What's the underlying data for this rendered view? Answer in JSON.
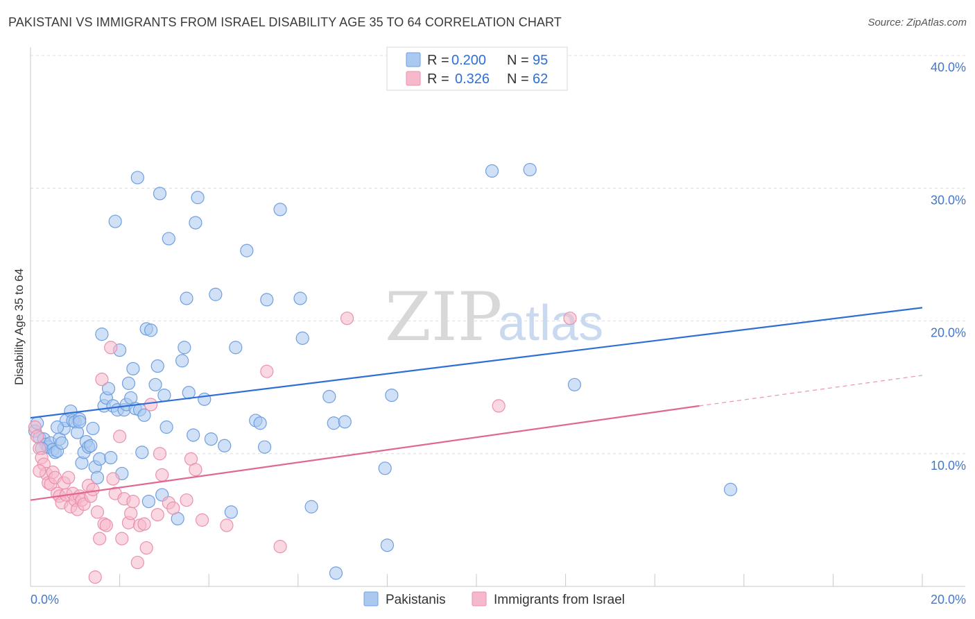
{
  "header": {
    "title": "PAKISTANI VS IMMIGRANTS FROM ISRAEL DISABILITY AGE 35 TO 64 CORRELATION CHART",
    "source": "Source: ZipAtlas.com"
  },
  "watermark": {
    "zip": "ZIP",
    "atlas": "atlas"
  },
  "legend": {
    "rows": [
      {
        "r_label": "R =",
        "r_value": "0.200",
        "n_label": "N =",
        "n_value": "95",
        "color": "#aac8f0"
      },
      {
        "r_label": "R =",
        "r_value": "0.326",
        "n_label": "N =",
        "n_value": "62",
        "color": "#f6b8cb"
      }
    ]
  },
  "chart_data": {
    "type": "scatter",
    "title": "PAKISTANI VS IMMIGRANTS FROM ISRAEL DISABILITY AGE 35 TO 64 CORRELATION CHART",
    "ylabel": "Disability Age 35 to 64",
    "xlabel": "",
    "xlim": [
      0,
      20
    ],
    "ylim": [
      0,
      40
    ],
    "x_ticks": [
      "0.0%",
      "20.0%"
    ],
    "y_ticks": [
      {
        "value": 10,
        "label": "10.0%"
      },
      {
        "value": 20,
        "label": "20.0%"
      },
      {
        "value": 30,
        "label": "30.0%"
      },
      {
        "value": 40,
        "label": "40.0%"
      }
    ],
    "grid": true,
    "legend_position": "top-center",
    "series": [
      {
        "name": "Pakistanis",
        "color": "#6f9fe0",
        "fill": "#aac8f0",
        "trend": {
          "x": [
            0,
            20
          ],
          "y": [
            12.7,
            21.0
          ],
          "color": "#2e6fd6"
        },
        "points": [
          [
            0.1,
            11.7
          ],
          [
            0.2,
            11.2
          ],
          [
            0.3,
            11.1
          ],
          [
            0.35,
            10.7
          ],
          [
            0.4,
            10.5
          ],
          [
            0.45,
            10.8
          ],
          [
            0.5,
            10.3
          ],
          [
            0.55,
            10.1
          ],
          [
            0.6,
            10.2
          ],
          [
            0.65,
            11.1
          ],
          [
            0.7,
            10.8
          ],
          [
            0.75,
            11.9
          ],
          [
            0.8,
            12.5
          ],
          [
            0.9,
            13.2
          ],
          [
            0.95,
            12.5
          ],
          [
            1.0,
            12.4
          ],
          [
            1.05,
            11.6
          ],
          [
            1.1,
            12.6
          ],
          [
            1.15,
            9.3
          ],
          [
            1.2,
            10.1
          ],
          [
            1.25,
            10.9
          ],
          [
            1.3,
            10.5
          ],
          [
            1.35,
            10.6
          ],
          [
            1.4,
            11.9
          ],
          [
            1.45,
            9.0
          ],
          [
            1.5,
            8.2
          ],
          [
            1.55,
            9.6
          ],
          [
            1.6,
            19.0
          ],
          [
            1.65,
            13.6
          ],
          [
            1.7,
            14.2
          ],
          [
            1.75,
            14.9
          ],
          [
            1.8,
            9.7
          ],
          [
            1.85,
            13.6
          ],
          [
            1.9,
            27.5
          ],
          [
            1.95,
            13.3
          ],
          [
            2.0,
            17.8
          ],
          [
            2.05,
            8.5
          ],
          [
            2.1,
            13.3
          ],
          [
            2.15,
            13.7
          ],
          [
            2.2,
            15.3
          ],
          [
            2.25,
            14.2
          ],
          [
            2.3,
            16.4
          ],
          [
            2.35,
            13.4
          ],
          [
            2.4,
            30.8
          ],
          [
            2.45,
            13.3
          ],
          [
            2.5,
            10.1
          ],
          [
            2.55,
            12.9
          ],
          [
            2.6,
            19.4
          ],
          [
            2.65,
            6.4
          ],
          [
            2.7,
            19.3
          ],
          [
            2.8,
            15.2
          ],
          [
            2.85,
            16.6
          ],
          [
            2.9,
            29.6
          ],
          [
            2.95,
            6.9
          ],
          [
            3.0,
            14.4
          ],
          [
            3.05,
            12.0
          ],
          [
            3.1,
            26.2
          ],
          [
            3.3,
            5.1
          ],
          [
            3.4,
            17.0
          ],
          [
            3.45,
            18.0
          ],
          [
            3.5,
            21.7
          ],
          [
            3.55,
            14.6
          ],
          [
            3.65,
            11.4
          ],
          [
            3.7,
            27.4
          ],
          [
            3.75,
            29.3
          ],
          [
            3.9,
            14.1
          ],
          [
            4.05,
            11.1
          ],
          [
            4.15,
            22.0
          ],
          [
            4.35,
            10.6
          ],
          [
            4.5,
            5.6
          ],
          [
            4.6,
            18.0
          ],
          [
            4.85,
            25.3
          ],
          [
            5.05,
            12.5
          ],
          [
            5.15,
            12.3
          ],
          [
            5.25,
            10.5
          ],
          [
            5.3,
            21.6
          ],
          [
            5.6,
            28.4
          ],
          [
            6.05,
            21.7
          ],
          [
            6.1,
            18.7
          ],
          [
            6.3,
            6.0
          ],
          [
            6.7,
            14.3
          ],
          [
            6.8,
            12.3
          ],
          [
            6.85,
            1.0
          ],
          [
            7.05,
            12.4
          ],
          [
            7.95,
            8.9
          ],
          [
            8.0,
            3.1
          ],
          [
            8.1,
            14.4
          ],
          [
            10.35,
            31.3
          ],
          [
            11.2,
            31.4
          ],
          [
            12.2,
            15.2
          ],
          [
            15.7,
            7.3
          ],
          [
            0.15,
            12.3
          ],
          [
            1.1,
            12.4
          ],
          [
            0.25,
            10.4
          ],
          [
            0.6,
            12.0
          ]
        ]
      },
      {
        "name": "Immigrants from Israel",
        "color": "#ec8fae",
        "fill": "#f6b8cb",
        "trend": {
          "x": [
            0,
            15
          ],
          "y": [
            6.5,
            13.6
          ],
          "color": "#e0678f",
          "dashed_extension": {
            "x": [
              15,
              20
            ],
            "y": [
              13.6,
              15.9
            ]
          }
        },
        "points": [
          [
            0.1,
            12.0
          ],
          [
            0.15,
            11.3
          ],
          [
            0.2,
            10.4
          ],
          [
            0.25,
            9.7
          ],
          [
            0.3,
            9.2
          ],
          [
            0.35,
            8.5
          ],
          [
            0.4,
            7.8
          ],
          [
            0.45,
            7.7
          ],
          [
            0.5,
            8.6
          ],
          [
            0.55,
            8.2
          ],
          [
            0.6,
            7.0
          ],
          [
            0.65,
            6.8
          ],
          [
            0.7,
            6.3
          ],
          [
            0.75,
            7.8
          ],
          [
            0.8,
            6.9
          ],
          [
            0.85,
            8.2
          ],
          [
            0.9,
            6.0
          ],
          [
            0.95,
            7.0
          ],
          [
            1.0,
            6.5
          ],
          [
            1.05,
            5.8
          ],
          [
            1.1,
            6.8
          ],
          [
            1.15,
            6.5
          ],
          [
            1.2,
            6.2
          ],
          [
            1.3,
            7.6
          ],
          [
            1.35,
            6.8
          ],
          [
            1.4,
            7.3
          ],
          [
            1.45,
            0.7
          ],
          [
            1.5,
            5.6
          ],
          [
            1.55,
            3.6
          ],
          [
            1.6,
            15.6
          ],
          [
            1.65,
            4.7
          ],
          [
            1.7,
            4.6
          ],
          [
            1.8,
            18.0
          ],
          [
            1.85,
            8.1
          ],
          [
            1.9,
            7.0
          ],
          [
            2.0,
            11.3
          ],
          [
            2.05,
            3.6
          ],
          [
            2.1,
            6.6
          ],
          [
            2.2,
            4.8
          ],
          [
            2.25,
            5.5
          ],
          [
            2.3,
            6.4
          ],
          [
            2.4,
            1.8
          ],
          [
            2.45,
            4.6
          ],
          [
            2.55,
            4.7
          ],
          [
            2.6,
            2.9
          ],
          [
            2.7,
            13.7
          ],
          [
            2.85,
            5.4
          ],
          [
            2.9,
            10.0
          ],
          [
            2.95,
            8.4
          ],
          [
            3.1,
            6.3
          ],
          [
            3.2,
            5.9
          ],
          [
            3.5,
            6.5
          ],
          [
            3.6,
            9.6
          ],
          [
            3.7,
            8.8
          ],
          [
            3.85,
            5.0
          ],
          [
            4.4,
            4.6
          ],
          [
            5.3,
            16.2
          ],
          [
            5.6,
            3.0
          ],
          [
            7.1,
            20.2
          ],
          [
            10.5,
            13.6
          ],
          [
            12.1,
            20.2
          ],
          [
            0.2,
            8.7
          ]
        ]
      }
    ]
  },
  "bottom_legend": {
    "items": [
      {
        "label": "Pakistanis",
        "color": "#aac8f0",
        "border": "#6f9fe0"
      },
      {
        "label": "Immigrants from Israel",
        "color": "#f6b8cb",
        "border": "#ec8fae"
      }
    ]
  }
}
